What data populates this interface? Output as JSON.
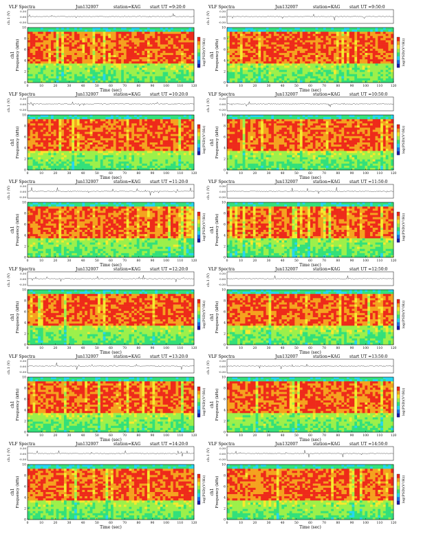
{
  "figure": {
    "heading": "VLF Spectra",
    "station": "station=KAG",
    "start_prefix": "start  UT  =",
    "time_label": "Time  (sec)",
    "freq_label": "Frequency  (kHz)",
    "chan_label": "ch1",
    "wave_label": "ch.1 (V)",
    "psd_label": "log(PSD)(V²/Hz)"
  },
  "chart_data": {
    "type": "heatmap",
    "colorscale": [
      "#1c19a8",
      "#1f6fe8",
      "#25d6f0",
      "#33e07a",
      "#9cf04a",
      "#f5ea2e",
      "#f5a21f",
      "#ee2a1a"
    ],
    "panels": [
      {
        "date": "Jun132007",
        "start_ut": "9:20:0",
        "seed": 11
      },
      {
        "date": "Jun132007",
        "start_ut": "9:50:0",
        "seed": 12
      },
      {
        "date": "Jun132007",
        "start_ut": "10:20:0",
        "seed": 21
      },
      {
        "date": "Jun132007",
        "start_ut": "10:50:0",
        "seed": 22
      },
      {
        "date": "Jun132007",
        "start_ut": "11:20:0",
        "seed": 31
      },
      {
        "date": "Jun132007",
        "start_ut": "11:50:0",
        "seed": 32
      },
      {
        "date": "Jun132007",
        "start_ut": "12:20:0",
        "seed": 41
      },
      {
        "date": "Jun132007",
        "start_ut": "12:50:0",
        "seed": 42
      },
      {
        "date": "Jun132007",
        "start_ut": "13:20:0",
        "seed": 51
      },
      {
        "date": "Jun132007",
        "start_ut": "13:50:0",
        "seed": 52
      },
      {
        "date": "Jun132007",
        "start_ut": "14:20:0",
        "seed": 61
      },
      {
        "date": "Jun132007",
        "start_ut": "14:50:0",
        "seed": 62
      }
    ],
    "x_range": [
      0,
      120
    ],
    "x_ticks": [
      0,
      10,
      20,
      30,
      40,
      50,
      60,
      70,
      80,
      90,
      100,
      110,
      120
    ],
    "freq_range_khz": [
      0,
      10
    ],
    "freq_ticks": [
      0,
      2,
      4,
      6,
      8,
      10
    ],
    "wave_range_v": [
      -0.3,
      0.3
    ],
    "wave_ticks": [
      "0.30",
      "0.00",
      "-0.30"
    ],
    "psd_range": [
      -7,
      2
    ]
  }
}
